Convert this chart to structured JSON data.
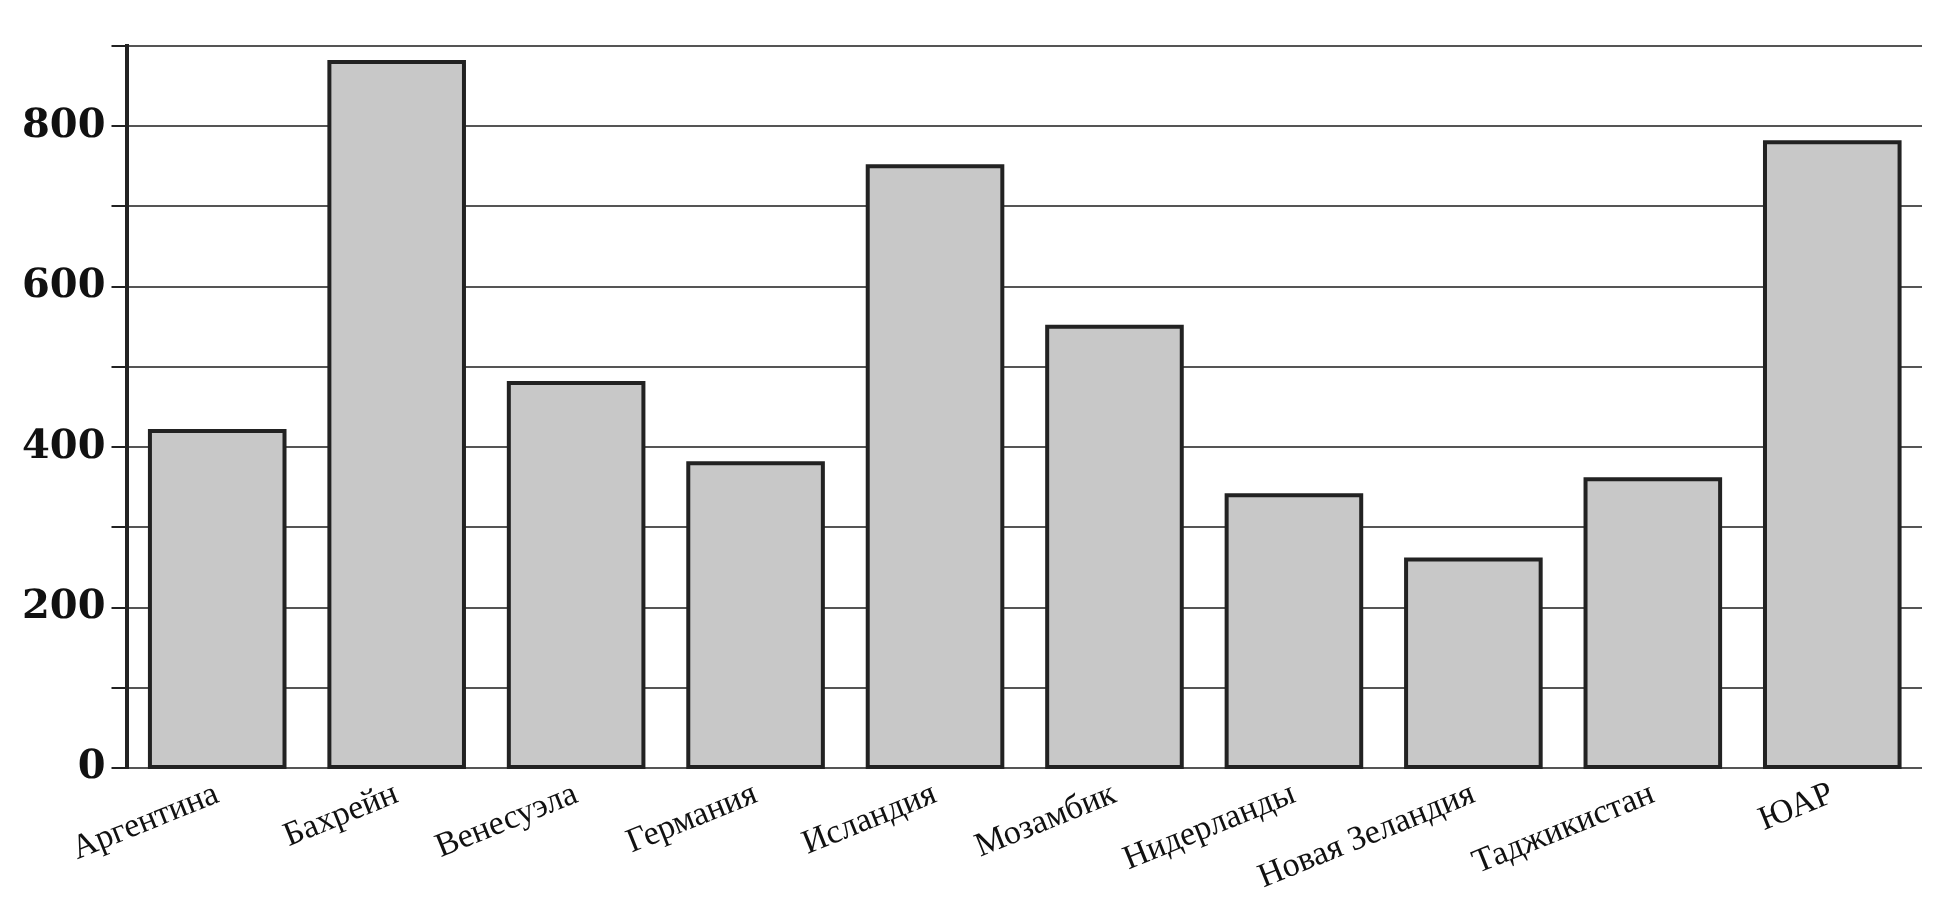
{
  "chart_data": {
    "type": "bar",
    "categories": [
      "Аргентина",
      "Бахрейн",
      "Венесуэла",
      "Германия",
      "Исландия",
      "Мозамбик",
      "Нидерланды",
      "Новая Зеландия",
      "Таджикистан",
      "ЮАР"
    ],
    "values": [
      420,
      880,
      480,
      380,
      750,
      550,
      340,
      260,
      360,
      780
    ],
    "color": "#c8c8c8",
    "ylim": [
      0,
      900
    ],
    "yticks": [
      0,
      {
        "value": 100,
        "label": null
      },
      200,
      {
        "value": 300,
        "label": null
      },
      400,
      {
        "value": 500,
        "label": null
      },
      600,
      {
        "value": 700,
        "label": null
      },
      800,
      {
        "value": 900,
        "label": null
      }
    ],
    "grid": "y"
  }
}
